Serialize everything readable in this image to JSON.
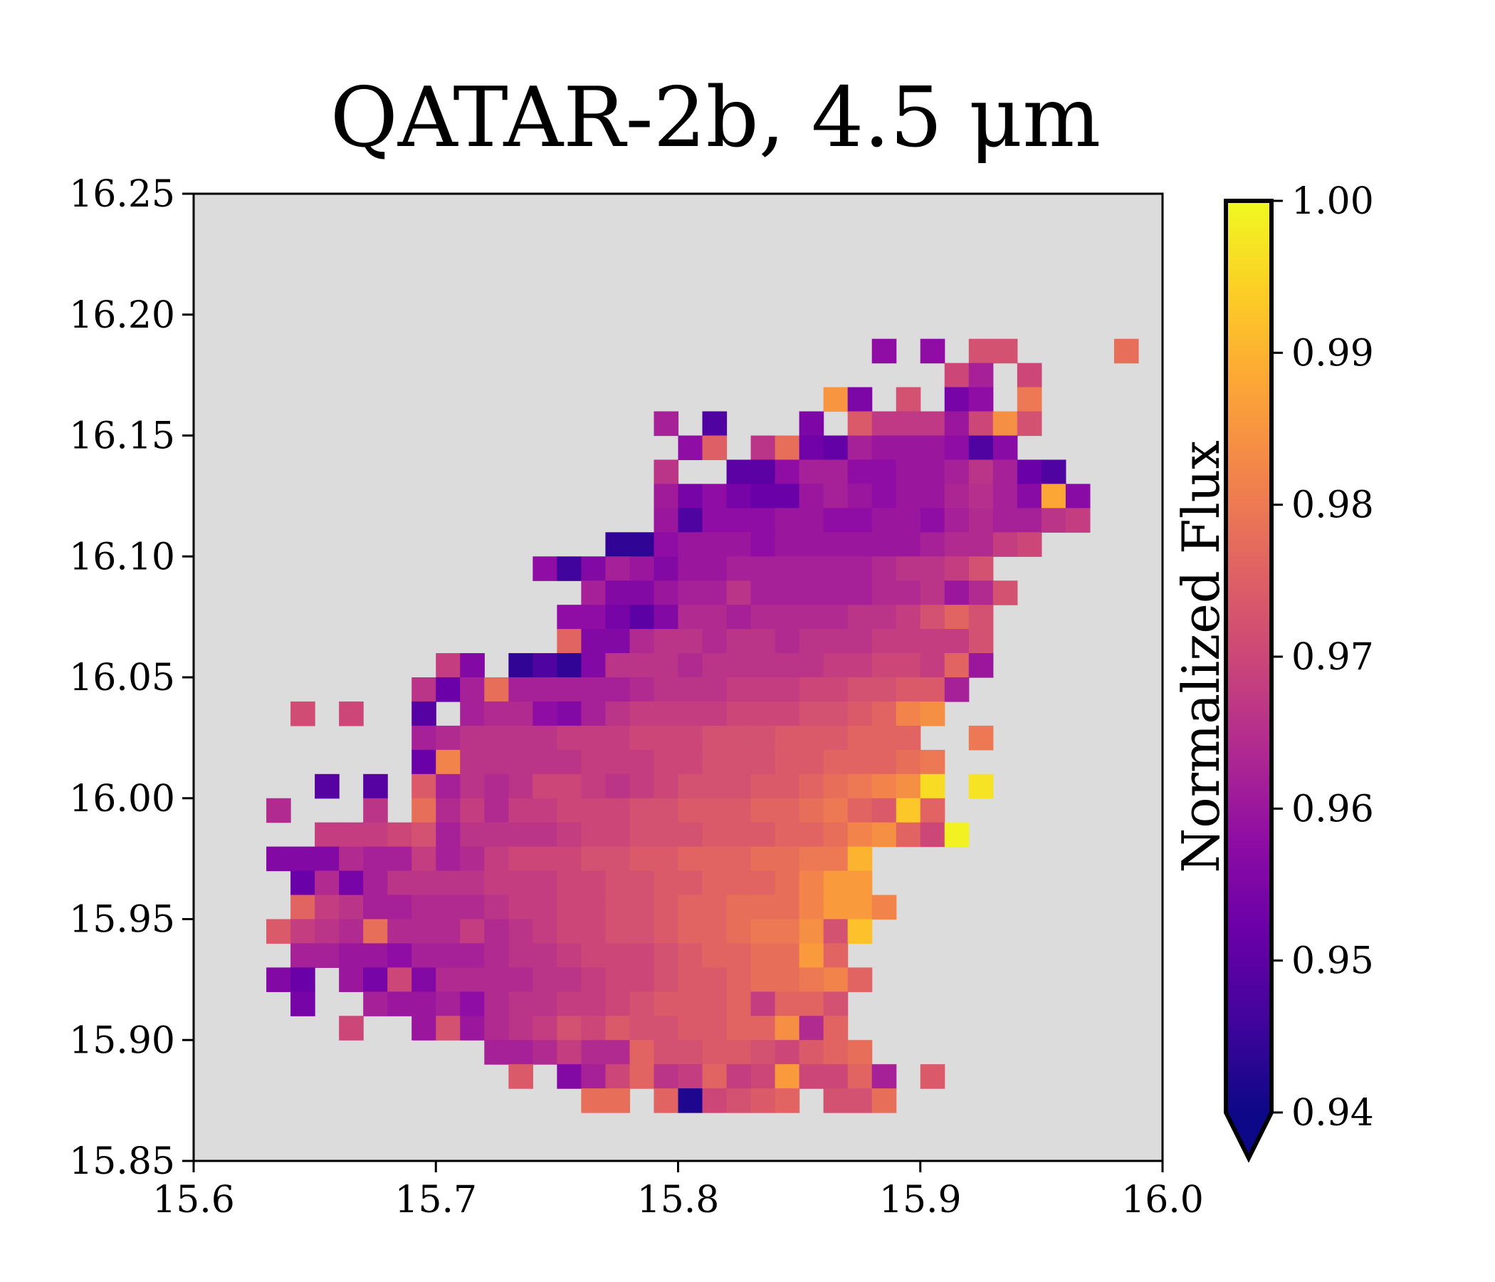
{
  "chart_data": {
    "type": "heatmap",
    "title": "QATAR-2b, 4.5 μm",
    "xlabel": "",
    "ylabel": "",
    "xlim": [
      15.6,
      16.0
    ],
    "ylim": [
      15.85,
      16.25
    ],
    "x_ticks": [
      "15.6",
      "15.7",
      "15.8",
      "15.9",
      "16.0"
    ],
    "y_ticks": [
      "15.85",
      "15.90",
      "15.95",
      "16.00",
      "16.05",
      "16.10",
      "16.15",
      "16.20",
      "16.25"
    ],
    "grid": false,
    "background_color": "#dcdcdc",
    "colormap": "plasma",
    "colorbar": {
      "label": "Normalized Flux",
      "min": 0.94,
      "max": 1.0,
      "extend": "min",
      "ticks": [
        "0.94",
        "0.95",
        "0.96",
        "0.97",
        "0.98",
        "0.99",
        "1.00"
      ]
    },
    "cell": {
      "x0": 15.6,
      "dx": 0.01,
      "y0": 15.85,
      "dy": 0.01
    },
    "rows": [
      {
        "y": 16.18,
        "start_col": 28,
        "values": [
          0.958,
          null,
          0.958,
          null,
          0.972,
          0.972,
          null,
          null,
          null,
          null,
          0.978
        ]
      },
      {
        "y": 16.17,
        "start_col": 31,
        "values": [
          0.97,
          0.962,
          null,
          0.97
        ]
      },
      {
        "y": 16.16,
        "start_col": 26,
        "values": [
          0.985,
          0.955,
          null,
          0.972,
          null,
          0.954,
          0.958,
          null,
          0.98
        ]
      },
      {
        "y": 16.15,
        "start_col": 19,
        "values": [
          0.962,
          null,
          0.948,
          null,
          null,
          null,
          0.955,
          null,
          0.974,
          0.967,
          0.967,
          0.967,
          0.96,
          0.97,
          0.984,
          0.972
        ]
      },
      {
        "y": 16.14,
        "start_col": 20,
        "values": [
          0.958,
          0.975,
          null,
          0.966,
          0.978,
          0.953,
          0.951,
          0.962,
          0.96,
          0.96,
          0.96,
          0.958,
          0.948,
          0.957
        ]
      },
      {
        "y": 16.13,
        "start_col": 19,
        "values": [
          0.966,
          null,
          null,
          0.95,
          0.95,
          0.958,
          0.962,
          0.962,
          0.958,
          0.958,
          0.96,
          0.96,
          0.962,
          0.966,
          0.962,
          0.952,
          0.948
        ]
      },
      {
        "y": 16.12,
        "start_col": 19,
        "values": [
          0.961,
          0.954,
          0.958,
          0.954,
          0.952,
          0.952,
          0.96,
          0.962,
          0.96,
          0.958,
          0.96,
          0.96,
          0.963,
          0.965,
          0.962,
          0.957,
          0.988,
          0.957
        ]
      },
      {
        "y": 16.11,
        "start_col": 19,
        "values": [
          0.96,
          0.948,
          0.958,
          0.958,
          0.958,
          0.96,
          0.96,
          0.958,
          0.958,
          0.96,
          0.96,
          0.958,
          0.962,
          0.964,
          0.962,
          0.962,
          0.966,
          0.968
        ]
      },
      {
        "y": 16.1,
        "start_col": 17,
        "values": [
          0.944,
          0.944,
          0.958,
          0.96,
          0.96,
          0.96,
          0.958,
          0.96,
          0.96,
          0.96,
          0.96,
          0.96,
          0.96,
          0.962,
          0.964,
          0.964,
          0.968,
          0.97
        ]
      },
      {
        "y": 16.09,
        "start_col": 14,
        "values": [
          0.958,
          0.946,
          0.956,
          0.962,
          0.96,
          0.956,
          0.96,
          0.96,
          0.962,
          0.962,
          0.962,
          0.962,
          0.962,
          0.962,
          0.964,
          0.966,
          0.966,
          0.968,
          0.972
        ]
      },
      {
        "y": 16.08,
        "start_col": 16,
        "values": [
          0.962,
          0.956,
          0.956,
          0.96,
          0.962,
          0.962,
          0.966,
          0.962,
          0.962,
          0.962,
          0.962,
          0.962,
          0.964,
          0.964,
          0.966,
          0.96,
          0.964,
          0.972
        ]
      },
      {
        "y": 16.07,
        "start_col": 15,
        "values": [
          0.958,
          0.958,
          0.954,
          0.95,
          0.956,
          0.964,
          0.964,
          0.962,
          0.964,
          0.964,
          0.964,
          0.964,
          0.966,
          0.966,
          0.968,
          0.972,
          0.976,
          0.972
        ]
      },
      {
        "y": 16.06,
        "start_col": 15,
        "values": [
          0.976,
          0.956,
          0.956,
          0.964,
          0.966,
          0.966,
          0.964,
          0.966,
          0.966,
          0.964,
          0.966,
          0.966,
          0.966,
          0.968,
          0.968,
          0.968,
          0.968,
          0.972
        ]
      },
      {
        "y": 16.05,
        "start_col": 10,
        "values": [
          0.968,
          0.956,
          null,
          0.944,
          0.948,
          0.944,
          0.956,
          0.966,
          0.966,
          0.966,
          0.964,
          0.966,
          0.966,
          0.966,
          0.966,
          0.966,
          0.968,
          0.968,
          0.97,
          0.97,
          0.968,
          0.976,
          0.96
        ]
      },
      {
        "y": 16.04,
        "start_col": 9,
        "values": [
          0.966,
          0.952,
          0.962,
          0.978,
          0.962,
          0.962,
          0.962,
          0.962,
          0.962,
          0.964,
          0.966,
          0.966,
          0.966,
          0.968,
          0.968,
          0.968,
          0.97,
          0.97,
          0.972,
          0.972,
          0.974,
          0.974,
          0.962
        ]
      },
      {
        "y": 16.03,
        "start_col": 4,
        "values": [
          0.971,
          null,
          0.97,
          null,
          null,
          0.949,
          null,
          0.962,
          0.964,
          0.964,
          0.958,
          0.956,
          0.962,
          0.966,
          0.968,
          0.968,
          0.968,
          0.968,
          0.97,
          0.97,
          0.97,
          0.972,
          0.972,
          0.974,
          0.976,
          0.982,
          0.984
        ]
      },
      {
        "y": 16.02,
        "start_col": 9,
        "values": [
          0.962,
          0.964,
          0.966,
          0.966,
          0.966,
          0.966,
          0.968,
          0.968,
          0.968,
          0.97,
          0.97,
          0.97,
          0.972,
          0.972,
          0.972,
          0.974,
          0.974,
          0.974,
          0.976,
          0.976,
          0.976,
          null,
          null,
          0.98
        ]
      },
      {
        "y": 16.01,
        "start_col": 9,
        "values": [
          0.952,
          0.982,
          0.966,
          0.966,
          0.966,
          0.966,
          0.966,
          0.968,
          0.968,
          0.968,
          0.97,
          0.97,
          0.972,
          0.972,
          0.972,
          0.974,
          0.974,
          0.976,
          0.976,
          0.976,
          0.978,
          0.98
        ]
      },
      {
        "y": 16.0,
        "start_col": 5,
        "values": [
          0.949,
          null,
          0.949,
          null,
          0.974,
          0.962,
          0.966,
          0.964,
          0.966,
          0.97,
          0.97,
          0.968,
          0.966,
          0.968,
          0.97,
          0.972,
          0.972,
          0.972,
          0.974,
          0.974,
          0.976,
          0.978,
          0.98,
          0.982,
          0.984,
          0.996,
          null,
          0.997
        ]
      },
      {
        "y": 15.99,
        "start_col": 3,
        "values": [
          0.964,
          null,
          null,
          null,
          0.966,
          null,
          0.978,
          0.964,
          0.968,
          0.964,
          0.968,
          0.968,
          0.97,
          0.97,
          0.97,
          0.972,
          0.972,
          0.974,
          0.974,
          0.974,
          0.976,
          0.976,
          0.978,
          0.98,
          0.976,
          0.974,
          0.993,
          0.976
        ]
      },
      {
        "y": 15.98,
        "start_col": 5,
        "values": [
          0.968,
          0.968,
          0.968,
          0.97,
          0.972,
          0.962,
          0.966,
          0.966,
          0.966,
          0.966,
          0.968,
          0.97,
          0.97,
          0.972,
          0.972,
          0.972,
          0.974,
          0.974,
          0.974,
          0.976,
          0.976,
          0.978,
          0.982,
          0.984,
          0.976,
          0.97,
          0.999
        ]
      },
      {
        "y": 15.97,
        "start_col": 3,
        "values": [
          0.956,
          0.956,
          0.956,
          0.964,
          0.962,
          0.962,
          0.968,
          0.962,
          0.964,
          0.968,
          0.97,
          0.97,
          0.97,
          0.972,
          0.972,
          0.974,
          0.974,
          0.976,
          0.976,
          0.976,
          0.978,
          0.978,
          0.98,
          0.98,
          0.99
        ]
      },
      {
        "y": 15.96,
        "start_col": 4,
        "values": [
          0.952,
          0.964,
          0.954,
          0.962,
          0.966,
          0.966,
          0.966,
          0.966,
          0.968,
          0.968,
          0.968,
          0.97,
          0.97,
          0.972,
          0.972,
          0.974,
          0.974,
          0.976,
          0.976,
          0.976,
          0.978,
          0.982,
          0.986,
          0.986
        ]
      },
      {
        "y": 15.95,
        "start_col": 4,
        "values": [
          0.976,
          0.968,
          0.966,
          0.962,
          0.962,
          0.964,
          0.964,
          0.964,
          0.966,
          0.968,
          0.968,
          0.97,
          0.97,
          0.972,
          0.972,
          0.974,
          0.976,
          0.976,
          0.978,
          0.978,
          0.978,
          0.982,
          0.986,
          0.986,
          0.982
        ]
      },
      {
        "y": 15.94,
        "start_col": 3,
        "values": [
          0.974,
          0.968,
          0.966,
          0.964,
          0.978,
          0.964,
          0.964,
          0.964,
          0.968,
          0.964,
          0.966,
          0.968,
          0.97,
          0.97,
          0.972,
          0.972,
          0.974,
          0.976,
          0.976,
          0.978,
          0.98,
          0.98,
          0.984,
          0.972,
          0.992
        ]
      },
      {
        "y": 15.93,
        "start_col": 4,
        "values": [
          0.962,
          0.962,
          0.96,
          0.96,
          0.958,
          0.962,
          0.962,
          0.962,
          0.964,
          0.966,
          0.966,
          0.968,
          0.97,
          0.97,
          0.97,
          0.972,
          0.974,
          0.976,
          0.976,
          0.978,
          0.978,
          0.986,
          0.976
        ]
      },
      {
        "y": 15.92,
        "start_col": 3,
        "values": [
          0.956,
          0.952,
          null,
          0.96,
          0.954,
          0.97,
          0.956,
          0.964,
          0.964,
          0.964,
          0.964,
          0.966,
          0.966,
          0.968,
          0.97,
          0.97,
          0.972,
          0.974,
          0.974,
          0.976,
          0.978,
          0.978,
          0.98,
          0.982,
          0.976
        ]
      },
      {
        "y": 15.91,
        "start_col": 4,
        "values": [
          0.954,
          null,
          null,
          0.962,
          0.96,
          0.96,
          0.962,
          0.958,
          0.964,
          0.966,
          0.966,
          0.968,
          0.968,
          0.97,
          0.972,
          0.974,
          0.974,
          0.974,
          0.976,
          0.968,
          0.976,
          0.976,
          0.972
        ]
      },
      {
        "y": 15.9,
        "start_col": 6,
        "values": [
          0.97,
          null,
          null,
          0.96,
          0.972,
          0.96,
          0.964,
          0.966,
          0.968,
          0.972,
          0.97,
          0.974,
          0.972,
          0.972,
          0.974,
          0.974,
          0.976,
          0.976,
          0.984,
          0.964,
          0.976
        ]
      },
      {
        "y": 15.89,
        "start_col": 12,
        "values": [
          0.962,
          0.962,
          0.964,
          0.968,
          0.964,
          0.964,
          0.976,
          0.972,
          0.972,
          0.974,
          0.974,
          0.972,
          0.97,
          0.974,
          0.976,
          0.978
        ]
      },
      {
        "y": 15.88,
        "start_col": 13,
        "values": [
          0.974,
          null,
          0.956,
          0.962,
          0.97,
          0.976,
          0.966,
          0.968,
          0.976,
          0.968,
          0.97,
          0.986,
          0.97,
          0.97,
          0.976,
          0.962,
          null,
          0.974
        ]
      },
      {
        "y": 15.87,
        "start_col": 16,
        "values": [
          0.978,
          0.978,
          null,
          0.976,
          0.942,
          0.97,
          0.972,
          0.974,
          0.976,
          null,
          0.972,
          0.972,
          0.978
        ]
      }
    ]
  }
}
